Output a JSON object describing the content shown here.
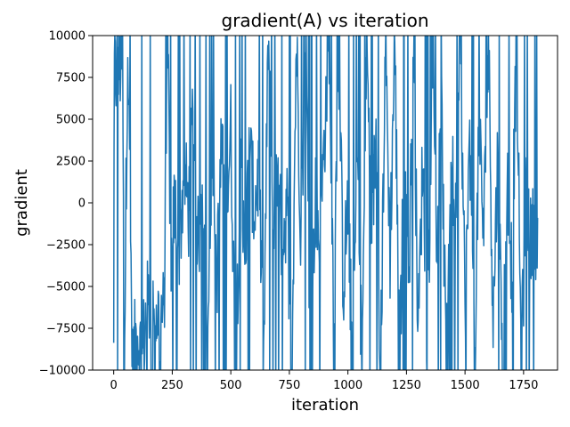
{
  "chart_data": {
    "type": "line",
    "title": "gradient(A) vs iteration",
    "xlabel": "iteration",
    "ylabel": "gradient",
    "xlim": [
      -90,
      1895
    ],
    "ylim": [
      -10000,
      10000
    ],
    "xticks": [
      0,
      250,
      500,
      750,
      1000,
      1250,
      1500,
      1750
    ],
    "yticks": [
      -10000,
      -7500,
      -5000,
      -2500,
      0,
      2500,
      5000,
      7500,
      10000
    ],
    "xtick_labels": [
      "0",
      "250",
      "500",
      "750",
      "1000",
      "1250",
      "1500",
      "1750"
    ],
    "ytick_labels": [
      "−10000",
      "−7500",
      "−5000",
      "−2500",
      "0",
      "2500",
      "5000",
      "7500",
      "10000"
    ],
    "grid": false,
    "series": [
      {
        "color": "#1f77b4",
        "x_range": [
          0,
          1810
        ],
        "values_sampled": [
          [
            0,
            -7200
          ],
          [
            3,
            7900
          ],
          [
            8,
            7500
          ],
          [
            15,
            8100
          ],
          [
            22,
            7700
          ],
          [
            30,
            8300
          ],
          [
            38,
            8400
          ],
          [
            45,
            -10000
          ],
          [
            60,
            10000
          ],
          [
            80,
            -10000
          ],
          [
            100,
            -7500
          ],
          [
            120,
            -9500
          ],
          [
            140,
            -6500
          ],
          [
            160,
            -5500
          ],
          [
            180,
            -6600
          ],
          [
            200,
            -6700
          ],
          [
            215,
            -6800
          ],
          [
            230,
            10000
          ],
          [
            245,
            -4000
          ],
          [
            260,
            0
          ],
          [
            280,
            -3000
          ],
          [
            300,
            2000
          ],
          [
            320,
            -500
          ],
          [
            340,
            5000
          ],
          [
            360,
            -2500
          ],
          [
            380,
            1000
          ],
          [
            400,
            -10000
          ],
          [
            420,
            4000
          ],
          [
            440,
            -4500
          ],
          [
            460,
            3000
          ],
          [
            480,
            -1000
          ],
          [
            500,
            4500
          ],
          [
            520,
            -10000
          ],
          [
            540,
            1500
          ],
          [
            560,
            -4000
          ],
          [
            580,
            3500
          ],
          [
            600,
            -500
          ],
          [
            620,
            2000
          ],
          [
            640,
            -10000
          ],
          [
            660,
            10000
          ],
          [
            680,
            -1500
          ],
          [
            700,
            1000
          ],
          [
            720,
            -2500
          ],
          [
            740,
            0
          ],
          [
            760,
            -10000
          ],
          [
            780,
            10000
          ],
          [
            800,
            -2000
          ],
          [
            820,
            10000
          ],
          [
            840,
            -10000
          ],
          [
            860,
            500
          ],
          [
            880,
            -2500
          ],
          [
            900,
            4000
          ],
          [
            920,
            10000
          ],
          [
            940,
            -7000
          ],
          [
            960,
            10000
          ],
          [
            980,
            -5000
          ],
          [
            1000,
            0
          ],
          [
            1020,
            -10000
          ],
          [
            1040,
            3000
          ],
          [
            1060,
            -10000
          ],
          [
            1080,
            10000
          ],
          [
            1100,
            -2000
          ],
          [
            1120,
            4000
          ],
          [
            1140,
            -10000
          ],
          [
            1160,
            10000
          ],
          [
            1180,
            -3000
          ],
          [
            1200,
            10000
          ],
          [
            1220,
            -10000
          ],
          [
            1240,
            2500
          ],
          [
            1260,
            -5000
          ],
          [
            1280,
            10000
          ],
          [
            1300,
            -8000
          ],
          [
            1320,
            3000
          ],
          [
            1340,
            -10000
          ],
          [
            1360,
            10000
          ],
          [
            1380,
            -2500
          ],
          [
            1400,
            5000
          ],
          [
            1420,
            -10000
          ],
          [
            1440,
            3000
          ],
          [
            1460,
            -1500
          ],
          [
            1480,
            10000
          ],
          [
            1500,
            -6000
          ],
          [
            1520,
            3000
          ],
          [
            1540,
            -10000
          ],
          [
            1560,
            4500
          ],
          [
            1580,
            -2000
          ],
          [
            1600,
            10000
          ],
          [
            1620,
            -7000
          ],
          [
            1640,
            3000
          ],
          [
            1660,
            -10000
          ],
          [
            1680,
            2000
          ],
          [
            1700,
            -4000
          ],
          [
            1720,
            10000
          ],
          [
            1740,
            -10000
          ],
          [
            1760,
            1000
          ],
          [
            1780,
            -2500
          ],
          [
            1795,
            -1500
          ],
          [
            1800,
            -1800
          ],
          [
            1810,
            -900
          ]
        ]
      }
    ]
  }
}
